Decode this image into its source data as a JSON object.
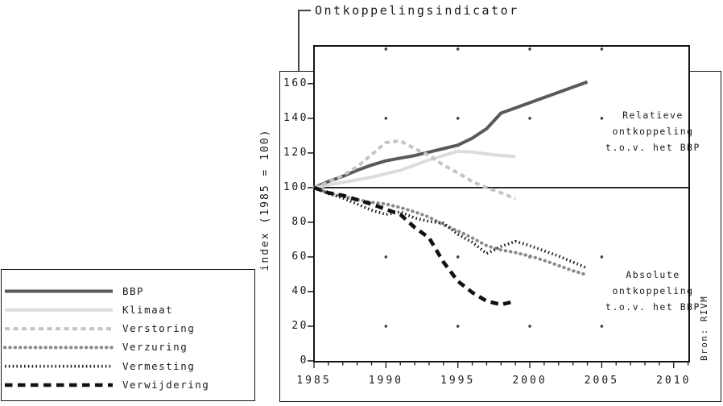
{
  "title": "Ontkoppelingsindicator",
  "y_axis_label": "index (1985 = 100)",
  "source_note": "Bron: RIVM",
  "annotations": {
    "relative": "Relatieve\nontkoppeling\nt.o.v. het BBP",
    "absolute": "Absolute\nontkoppeling\nt.o.v. het BBP"
  },
  "chart_data": {
    "type": "line",
    "title": "Ontkoppelingsindicator",
    "xlabel": "",
    "ylabel": "index (1985 = 100)",
    "xlim": [
      1985,
      2011
    ],
    "ylim": [
      0,
      182
    ],
    "x_major_ticks": [
      1985,
      1990,
      1995,
      2000,
      2005,
      2010
    ],
    "x_minor_tick_step_years": 1,
    "y_ticks": [
      0,
      20,
      40,
      60,
      80,
      100,
      120,
      140,
      160
    ],
    "reference_line_value": 100,
    "grid_style": "dots at major-year columns",
    "grid_dot_years": [
      1990,
      1995,
      2000,
      2005
    ],
    "grid_dot_values": [
      20,
      60,
      140,
      180
    ],
    "legend_position": "outside-bottom-left",
    "series": [
      {
        "name": "BBP",
        "color": "#595959",
        "width": 4,
        "dash": "",
        "cap": "butt",
        "points": [
          [
            1985,
            100
          ],
          [
            1986,
            103.5
          ],
          [
            1987,
            106.5
          ],
          [
            1988,
            110
          ],
          [
            1989,
            113
          ],
          [
            1990,
            115.5
          ],
          [
            1991,
            117
          ],
          [
            1992,
            118.5
          ],
          [
            1993,
            120.5
          ],
          [
            1994,
            122.5
          ],
          [
            1995,
            124.5
          ],
          [
            1996,
            128.5
          ],
          [
            1997,
            134
          ],
          [
            1998,
            143
          ],
          [
            1999,
            146
          ],
          [
            2000,
            149
          ],
          [
            2001,
            152
          ],
          [
            2002,
            155
          ],
          [
            2003,
            158
          ],
          [
            2004,
            161
          ]
        ]
      },
      {
        "name": "Klimaat",
        "color": "#dcdcdc",
        "width": 4,
        "dash": "",
        "cap": "butt",
        "points": [
          [
            1985,
            100
          ],
          [
            1986,
            101.5
          ],
          [
            1987,
            103
          ],
          [
            1988,
            104.5
          ],
          [
            1989,
            106
          ],
          [
            1990,
            108
          ],
          [
            1991,
            110
          ],
          [
            1992,
            113
          ],
          [
            1993,
            116
          ],
          [
            1994,
            118.5
          ],
          [
            1995,
            121
          ],
          [
            1996,
            120.5
          ],
          [
            1997,
            119.5
          ],
          [
            1998,
            118.5
          ],
          [
            1999,
            118
          ]
        ]
      },
      {
        "name": "Verstoring",
        "color": "#c4c4c4",
        "width": 4,
        "dash": "6 4.5",
        "cap": "butt",
        "points": [
          [
            1985,
            100
          ],
          [
            1986,
            103
          ],
          [
            1987,
            107
          ],
          [
            1988,
            112
          ],
          [
            1989,
            119
          ],
          [
            1990,
            126
          ],
          [
            1991,
            127
          ],
          [
            1992,
            122.5
          ],
          [
            1993,
            118.5
          ],
          [
            1994,
            113
          ],
          [
            1995,
            108.5
          ],
          [
            1996,
            103.5
          ],
          [
            1997,
            100
          ],
          [
            1998,
            97
          ],
          [
            1999,
            93.5
          ]
        ]
      },
      {
        "name": "Verzuring",
        "color": "#8a8a8a",
        "width": 4,
        "dash": "0.5 5.8",
        "cap": "round",
        "points": [
          [
            1985,
            100
          ],
          [
            1986,
            97
          ],
          [
            1987,
            95
          ],
          [
            1988,
            93
          ],
          [
            1989,
            91.5
          ],
          [
            1990,
            90.5
          ],
          [
            1991,
            88.5
          ],
          [
            1992,
            86
          ],
          [
            1993,
            83
          ],
          [
            1994,
            78.5
          ],
          [
            1995,
            75
          ],
          [
            1996,
            71
          ],
          [
            1997,
            66.5
          ],
          [
            1998,
            64
          ],
          [
            1999,
            62.5
          ],
          [
            2000,
            60.5
          ],
          [
            2001,
            58
          ],
          [
            2002,
            55
          ],
          [
            2003,
            52
          ],
          [
            2004,
            49.5
          ]
        ]
      },
      {
        "name": "Vermesting",
        "color": "#1f1f1f",
        "width": 3.6,
        "dash": "1.6 3.2",
        "cap": "butt",
        "points": [
          [
            1985,
            100
          ],
          [
            1986,
            96.5
          ],
          [
            1987,
            94
          ],
          [
            1988,
            90.5
          ],
          [
            1989,
            87
          ],
          [
            1990,
            84.5
          ],
          [
            1991,
            86
          ],
          [
            1992,
            82.5
          ],
          [
            1993,
            80.5
          ],
          [
            1994,
            79.5
          ],
          [
            1995,
            73
          ],
          [
            1996,
            68.5
          ],
          [
            1997,
            62
          ],
          [
            1998,
            66
          ],
          [
            1999,
            69
          ],
          [
            2000,
            66.5
          ],
          [
            2001,
            63.5
          ],
          [
            2002,
            60.5
          ],
          [
            2003,
            57
          ],
          [
            2004,
            53.5
          ]
        ]
      },
      {
        "name": "Verwijdering",
        "color": "#111111",
        "width": 4.6,
        "dash": "9.5 6.5",
        "cap": "butt",
        "points": [
          [
            1985,
            100
          ],
          [
            1986,
            97
          ],
          [
            1987,
            95.5
          ],
          [
            1988,
            93
          ],
          [
            1989,
            90.5
          ],
          [
            1990,
            87.5
          ],
          [
            1991,
            84.5
          ],
          [
            1992,
            77
          ],
          [
            1993,
            71
          ],
          [
            1994,
            57
          ],
          [
            1995,
            46
          ],
          [
            1996,
            39.5
          ],
          [
            1997,
            34.5
          ],
          [
            1998,
            32.5
          ],
          [
            1999,
            34.5
          ]
        ]
      }
    ]
  }
}
